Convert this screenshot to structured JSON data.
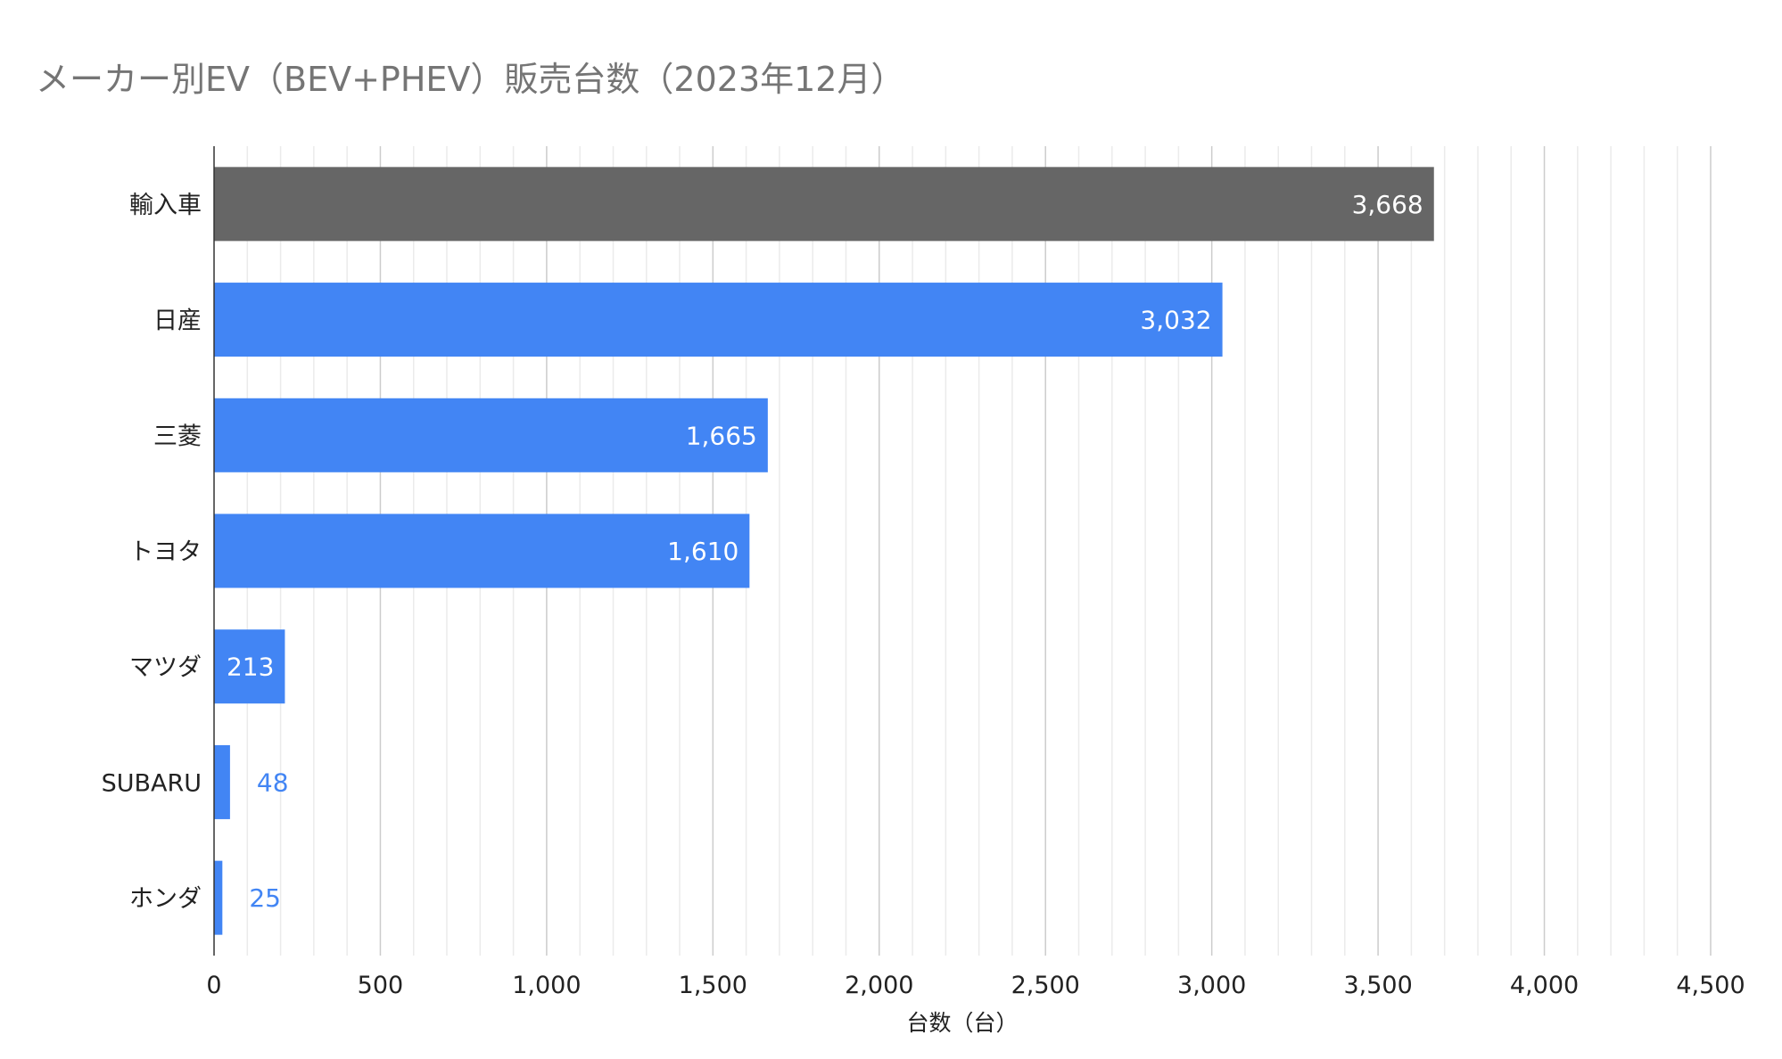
{
  "chart_data": {
    "type": "bar",
    "orientation": "horizontal",
    "title": "メーカー別EV（BEV+PHEV）販売台数（2023年12月）",
    "xlabel": "台数（台）",
    "ylabel": "",
    "categories": [
      "輸入車",
      "日産",
      "三菱",
      "トヨタ",
      "マツダ",
      "SUBARU",
      "ホンダ"
    ],
    "values": [
      3668,
      3032,
      1665,
      1610,
      213,
      48,
      25
    ],
    "value_labels": [
      "3,668",
      "3,032",
      "1,665",
      "1,610",
      "213",
      "48",
      "25"
    ],
    "bar_colors": [
      "#666666",
      "#4285f4",
      "#4285f4",
      "#4285f4",
      "#4285f4",
      "#4285f4",
      "#4285f4"
    ],
    "xlim": [
      0,
      4500
    ],
    "x_ticks": [
      0,
      500,
      1000,
      1500,
      2000,
      2500,
      3000,
      3500,
      4000,
      4500
    ],
    "x_tick_labels": [
      "0",
      "500",
      "1,000",
      "1,500",
      "2,000",
      "2,500",
      "3,000",
      "3,500",
      "4,000",
      "4,500"
    ],
    "grid": true,
    "minor_grid": true,
    "legend": "none"
  },
  "colors": {
    "accent": "#4285f4",
    "highlight": "#666666",
    "title": "#757575",
    "grid_major": "#cccccc",
    "grid_minor": "#ebebeb",
    "axis": "#333333"
  }
}
